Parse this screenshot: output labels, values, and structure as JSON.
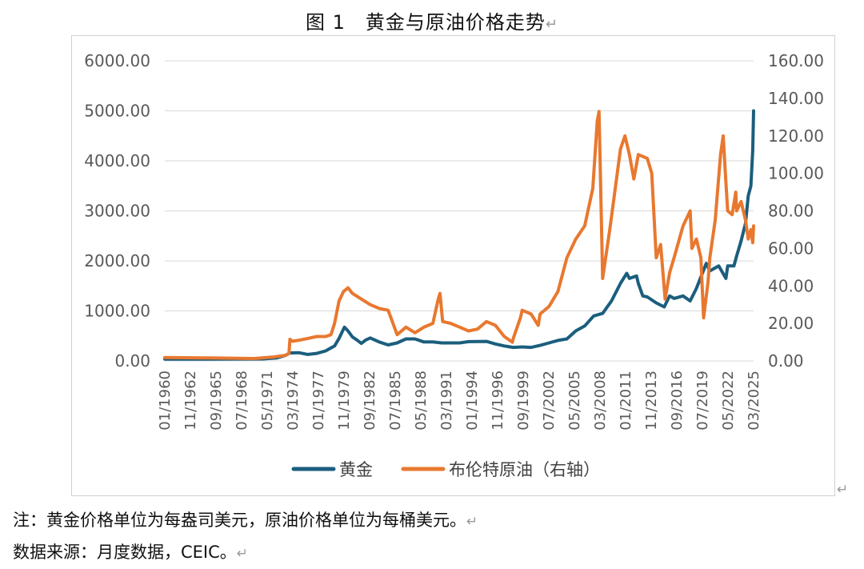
{
  "figure": {
    "title": "图 1　黄金与原油价格走势",
    "return_mark": "↵"
  },
  "notes": {
    "line1": "注：黄金价格单位为每盎司美元，原油价格单位为每桶美元。",
    "line2": "数据来源：月度数据，CEIC。"
  },
  "chart_data": {
    "type": "line",
    "title": "",
    "xlabel": "",
    "ylabel": "",
    "y2label": "",
    "ylim": [
      0,
      6000
    ],
    "y2lim": [
      0,
      160
    ],
    "yticks": [
      "0.00",
      "1000.00",
      "2000.00",
      "3000.00",
      "4000.00",
      "5000.00",
      "6000.00"
    ],
    "y2ticks": [
      "0.00",
      "20.00",
      "40.00",
      "60.00",
      "80.00",
      "100.00",
      "120.00",
      "140.00",
      "160.00"
    ],
    "xlim": [
      1960.0,
      2025.9
    ],
    "xticks": [
      "01/1960",
      "11/1962",
      "09/1965",
      "07/1968",
      "05/1971",
      "03/1974",
      "01/1977",
      "11/1979",
      "09/1982",
      "07/1985",
      "05/1988",
      "03/1991",
      "01/1994",
      "11/1996",
      "09/1999",
      "07/2002",
      "05/2005",
      "03/2008",
      "01/2011",
      "11/2013",
      "09/2016",
      "07/2019",
      "05/2022",
      "03/2025"
    ],
    "grid": true,
    "legend": "bottom",
    "series": [
      {
        "name": "黄金",
        "axis": "left",
        "color": "#1b5e7e",
        "points": [
          [
            1960,
            35
          ],
          [
            1965,
            35
          ],
          [
            1968,
            38
          ],
          [
            1971,
            40
          ],
          [
            1972.5,
            60
          ],
          [
            1973.5,
            110
          ],
          [
            1974,
            160
          ],
          [
            1975,
            165
          ],
          [
            1976,
            130
          ],
          [
            1977,
            150
          ],
          [
            1978,
            200
          ],
          [
            1979,
            300
          ],
          [
            1979.5,
            450
          ],
          [
            1980.1,
            675
          ],
          [
            1980.5,
            600
          ],
          [
            1981,
            480
          ],
          [
            1981.5,
            420
          ],
          [
            1982,
            350
          ],
          [
            1982.5,
            420
          ],
          [
            1983,
            460
          ],
          [
            1983.5,
            420
          ],
          [
            1984,
            380
          ],
          [
            1985,
            320
          ],
          [
            1986,
            360
          ],
          [
            1987,
            440
          ],
          [
            1988,
            440
          ],
          [
            1989,
            380
          ],
          [
            1990,
            380
          ],
          [
            1991,
            360
          ],
          [
            1993,
            360
          ],
          [
            1994,
            385
          ],
          [
            1996,
            390
          ],
          [
            1997,
            340
          ],
          [
            1998,
            300
          ],
          [
            1999,
            270
          ],
          [
            2000,
            280
          ],
          [
            2001,
            270
          ],
          [
            2002,
            310
          ],
          [
            2003,
            360
          ],
          [
            2004,
            410
          ],
          [
            2005,
            440
          ],
          [
            2006,
            600
          ],
          [
            2007,
            700
          ],
          [
            2008,
            900
          ],
          [
            2009,
            950
          ],
          [
            2010,
            1200
          ],
          [
            2011,
            1550
          ],
          [
            2011.7,
            1750
          ],
          [
            2012,
            1650
          ],
          [
            2012.8,
            1700
          ],
          [
            2013,
            1550
          ],
          [
            2013.5,
            1300
          ],
          [
            2014,
            1280
          ],
          [
            2015,
            1160
          ],
          [
            2015.9,
            1080
          ],
          [
            2016.5,
            1300
          ],
          [
            2017,
            1250
          ],
          [
            2018,
            1300
          ],
          [
            2018.8,
            1200
          ],
          [
            2019.5,
            1450
          ],
          [
            2020.6,
            1950
          ],
          [
            2021,
            1800
          ],
          [
            2022,
            1900
          ],
          [
            2022.8,
            1650
          ],
          [
            2023,
            1900
          ],
          [
            2023.7,
            1900
          ],
          [
            2024,
            2100
          ],
          [
            2024.5,
            2400
          ],
          [
            2025,
            2750
          ],
          [
            2025.3,
            3300
          ],
          [
            2025.6,
            3500
          ],
          [
            2025.8,
            4200
          ],
          [
            2025.9,
            5000
          ]
        ]
      },
      {
        "name": "布伦特原油（右轴）",
        "axis": "right",
        "color": "#e8782f",
        "points": [
          [
            1960,
            1.8
          ],
          [
            1965,
            1.6
          ],
          [
            1970,
            1.3
          ],
          [
            1972,
            2.0
          ],
          [
            1973.5,
            3.0
          ],
          [
            1973.9,
            4.0
          ],
          [
            1974,
            11.5
          ],
          [
            1974.3,
            10.5
          ],
          [
            1975,
            11
          ],
          [
            1976,
            12
          ],
          [
            1977,
            13
          ],
          [
            1978,
            13
          ],
          [
            1978.6,
            14
          ],
          [
            1979,
            20
          ],
          [
            1979.5,
            32
          ],
          [
            1980,
            37
          ],
          [
            1980.5,
            39
          ],
          [
            1981,
            36
          ],
          [
            1982,
            33
          ],
          [
            1983,
            30
          ],
          [
            1984,
            28
          ],
          [
            1985,
            27
          ],
          [
            1986,
            14
          ],
          [
            1987,
            18
          ],
          [
            1988,
            15
          ],
          [
            1989,
            18
          ],
          [
            1990,
            20
          ],
          [
            1990.6,
            33
          ],
          [
            1990.8,
            36
          ],
          [
            1991.1,
            21
          ],
          [
            1992,
            20
          ],
          [
            1993,
            18
          ],
          [
            1994,
            16
          ],
          [
            1995,
            17
          ],
          [
            1996,
            21
          ],
          [
            1997,
            19
          ],
          [
            1998,
            13
          ],
          [
            1998.9,
            10
          ],
          [
            1999,
            12
          ],
          [
            1999.8,
            23
          ],
          [
            2000,
            27
          ],
          [
            2001,
            25
          ],
          [
            2001.8,
            19
          ],
          [
            2002,
            25
          ],
          [
            2003,
            29
          ],
          [
            2004,
            37
          ],
          [
            2005,
            55
          ],
          [
            2006,
            65
          ],
          [
            2007,
            72
          ],
          [
            2007.9,
            92
          ],
          [
            2008.4,
            128
          ],
          [
            2008.6,
            133
          ],
          [
            2009,
            44
          ],
          [
            2009.8,
            70
          ],
          [
            2010,
            77
          ],
          [
            2011,
            113
          ],
          [
            2011.5,
            120
          ],
          [
            2012,
            110
          ],
          [
            2012.5,
            97
          ],
          [
            2013,
            110
          ],
          [
            2014,
            108
          ],
          [
            2014.5,
            100
          ],
          [
            2015,
            55
          ],
          [
            2015.5,
            62
          ],
          [
            2016,
            33
          ],
          [
            2016.5,
            47
          ],
          [
            2017,
            55
          ],
          [
            2018,
            72
          ],
          [
            2018.8,
            80
          ],
          [
            2019,
            60
          ],
          [
            2019.5,
            65
          ],
          [
            2020,
            55
          ],
          [
            2020.3,
            23
          ],
          [
            2020.8,
            42
          ],
          [
            2021,
            55
          ],
          [
            2021.6,
            75
          ],
          [
            2022.2,
            110
          ],
          [
            2022.5,
            120
          ],
          [
            2022.8,
            95
          ],
          [
            2023,
            80
          ],
          [
            2023.5,
            78
          ],
          [
            2023.9,
            90
          ],
          [
            2024,
            80
          ],
          [
            2024.5,
            85
          ],
          [
            2025,
            75
          ],
          [
            2025.3,
            65
          ],
          [
            2025.6,
            70
          ],
          [
            2025.8,
            63
          ],
          [
            2025.9,
            72
          ]
        ]
      }
    ]
  }
}
